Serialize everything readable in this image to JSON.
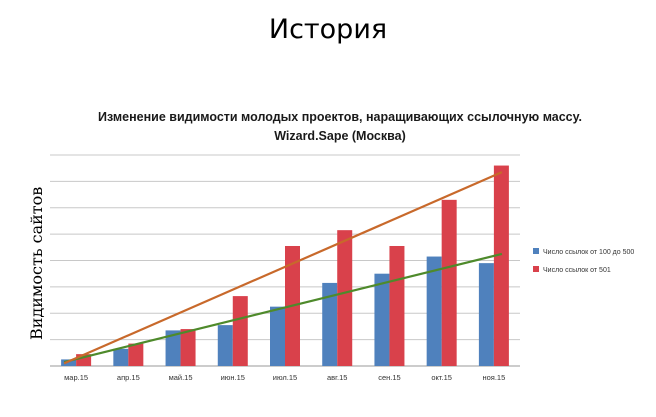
{
  "slide": {
    "title": "История"
  },
  "chart_data": {
    "type": "bar",
    "title": "Изменение видимости молодых проектов, наращивающих ссылочную массу.",
    "subtitle": "Wizard.Sape (Москва)",
    "ylabel": "Видимость сайтов",
    "xlabel": "",
    "categories": [
      "мар.15",
      "апр.15",
      "май.15",
      "июн.15",
      "июл.15",
      "авг.15",
      "сен.15",
      "окт.15",
      "ноя.15"
    ],
    "series": [
      {
        "name": "Число ссылок от 100 до 500",
        "color": "#4f81bd",
        "values": [
          0.5,
          1.3,
          2.7,
          3.1,
          4.5,
          6.3,
          7.0,
          8.3,
          7.8
        ]
      },
      {
        "name": "Число ссылок от 501",
        "color": "#d9414b",
        "values": [
          0.9,
          1.7,
          2.8,
          5.3,
          9.1,
          10.3,
          9.1,
          12.6,
          15.2
        ]
      }
    ],
    "trendlines": [
      {
        "series": "Число ссылок от 100 до 500",
        "color": "#4e8a2b",
        "start": 0.3,
        "end": 8.5
      },
      {
        "series": "Число ссылок от 501",
        "color": "#c8692b",
        "start": 0.2,
        "end": 14.7
      }
    ],
    "ylim": [
      0,
      16
    ],
    "y_gridlines": 8,
    "grid": true,
    "y_tick_labels": false,
    "legend_position": "right"
  }
}
